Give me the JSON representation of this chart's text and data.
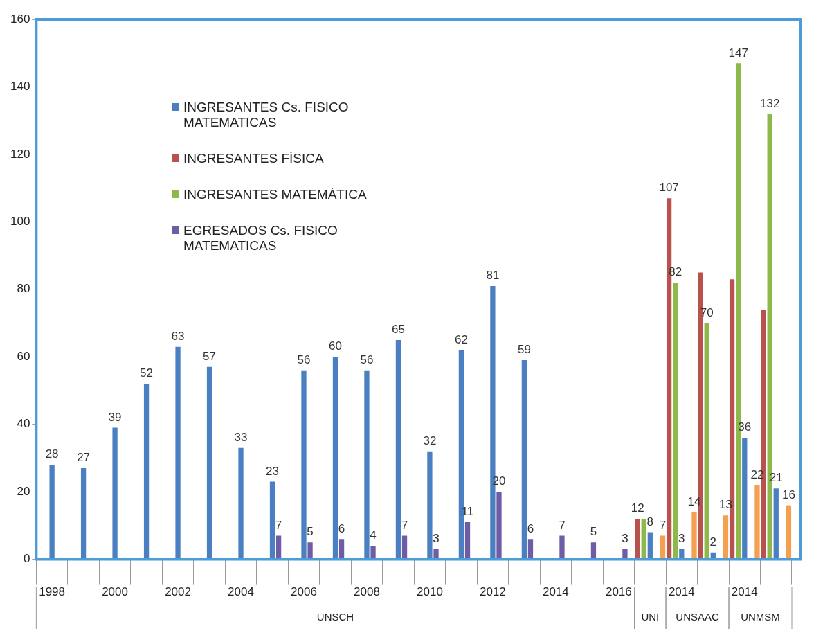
{
  "chart_data": {
    "type": "bar",
    "categories": [
      "1998",
      null,
      "2000",
      null,
      "2002",
      null,
      "2004",
      null,
      "2006",
      null,
      "2008",
      null,
      "2010",
      null,
      "2012",
      null,
      "2014",
      null,
      "2016",
      null,
      "2014",
      null,
      "2014",
      null
    ],
    "ylim": [
      0,
      160
    ],
    "yticks": [
      0,
      20,
      40,
      60,
      80,
      100,
      120,
      140,
      160
    ],
    "legend": "top left",
    "series": [
      {
        "name": "INGRESANTES Cs. FISICO MATEMATICAS",
        "color": "#4a7fc1",
        "values": [
          28,
          27,
          39,
          52,
          63,
          57,
          33,
          23,
          56,
          60,
          56,
          65,
          32,
          62,
          81,
          59,
          null,
          null,
          null,
          8,
          3,
          2,
          36,
          21
        ],
        "value_labels": [
          "28",
          "27",
          "39",
          "52",
          "63",
          "57",
          "33",
          "23",
          "56",
          "60",
          "56",
          "65",
          "32",
          "62",
          "81",
          "59",
          null,
          null,
          null,
          "8",
          "3",
          "2",
          "36",
          "21"
        ]
      },
      {
        "name": "INGRESANTES FÍSICA",
        "color": "#b9514e",
        "values": [
          null,
          null,
          null,
          null,
          null,
          null,
          null,
          null,
          null,
          null,
          null,
          null,
          null,
          null,
          null,
          null,
          null,
          null,
          null,
          12,
          107,
          85,
          83,
          74
        ],
        "value_labels": [
          null,
          null,
          null,
          null,
          null,
          null,
          null,
          null,
          null,
          null,
          null,
          null,
          null,
          null,
          null,
          null,
          null,
          null,
          null,
          "12",
          "107",
          null,
          null,
          null
        ]
      },
      {
        "name": "INGRESANTES MATEMÁTICA",
        "color": "#8db84a",
        "values": [
          null,
          null,
          null,
          null,
          null,
          null,
          null,
          null,
          null,
          null,
          null,
          null,
          null,
          null,
          null,
          null,
          null,
          null,
          null,
          12,
          82,
          70,
          147,
          132
        ],
        "value_labels": [
          null,
          null,
          null,
          null,
          null,
          null,
          null,
          null,
          null,
          null,
          null,
          null,
          null,
          null,
          null,
          null,
          null,
          null,
          null,
          null,
          "82",
          "70",
          "147",
          "132"
        ]
      },
      {
        "name": "EGRESADOS Cs. FISICO MATEMATICAS",
        "color": "#6e5ca6",
        "values": [
          null,
          null,
          null,
          null,
          null,
          null,
          null,
          7,
          5,
          6,
          4,
          7,
          3,
          11,
          20,
          6,
          7,
          5,
          3,
          null,
          null,
          null,
          null,
          null
        ],
        "value_labels": [
          null,
          null,
          null,
          null,
          null,
          null,
          null,
          "7",
          "5",
          "6",
          "4",
          "7",
          "3",
          "11",
          "20",
          "6",
          "7",
          "5",
          "3",
          null,
          null,
          null,
          null,
          null
        ]
      },
      {
        "color": "#f5a04e",
        "values": [
          null,
          null,
          null,
          null,
          null,
          null,
          null,
          null,
          null,
          null,
          null,
          null,
          null,
          null,
          null,
          null,
          null,
          null,
          null,
          7,
          14,
          13,
          22,
          16
        ],
        "value_labels": [
          null,
          null,
          null,
          null,
          null,
          null,
          null,
          null,
          null,
          null,
          null,
          null,
          null,
          null,
          null,
          null,
          null,
          null,
          null,
          "7",
          "14",
          "13",
          "22",
          "16"
        ]
      }
    ],
    "annotations": [
      "UNSCH",
      "UNI",
      "UNSAAC",
      "UNMSM"
    ]
  }
}
